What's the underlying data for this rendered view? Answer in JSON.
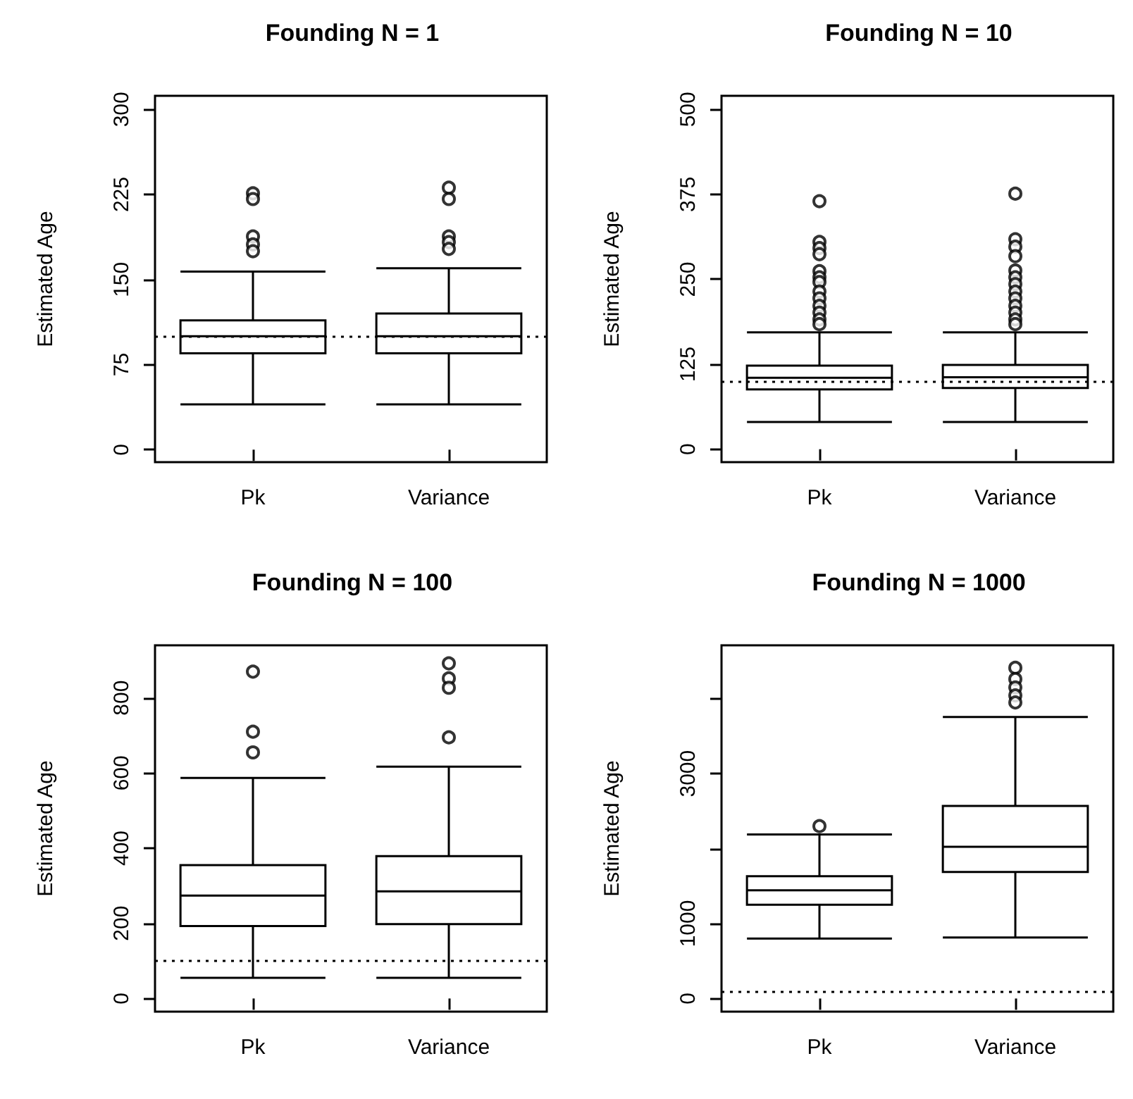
{
  "chart_data": [
    {
      "type": "box",
      "title": "Founding N = 1",
      "ylabel": "Estimated Age",
      "categories": [
        "Pk",
        "Variance"
      ],
      "boxes": [
        {
          "low": 40,
          "q1": 85,
          "median": 100,
          "q3": 114,
          "high": 157,
          "outliers": [
            226,
            221,
            188,
            181,
            175
          ]
        },
        {
          "low": 40,
          "q1": 85,
          "median": 100,
          "q3": 120,
          "high": 160,
          "outliers": [
            231,
            221,
            188,
            183,
            177
          ]
        }
      ],
      "ylim": [
        -11,
        312
      ],
      "yticks": [
        0,
        75,
        150,
        225,
        300
      ],
      "ref_lines": [
        {
          "axis": "y",
          "value": 100,
          "line_style": "dotted"
        }
      ]
    },
    {
      "type": "box",
      "title": "Founding N = 10",
      "ylabel": "Estimated Age",
      "categories": [
        "Pk",
        "Variance"
      ],
      "boxes": [
        {
          "low": 40,
          "q1": 88,
          "median": 105,
          "q3": 123,
          "high": 172,
          "outliers": [
            365,
            305,
            296,
            287,
            262,
            253,
            246,
            232,
            222,
            211,
            201,
            191,
            184
          ]
        },
        {
          "low": 40,
          "q1": 90,
          "median": 106,
          "q3": 124,
          "high": 172,
          "outliers": [
            376,
            309,
            298,
            284,
            263,
            253,
            243,
            232,
            222,
            211,
            201,
            191,
            184
          ]
        }
      ],
      "ylim": [
        -19,
        520
      ],
      "yticks": [
        0,
        125,
        250,
        375,
        500
      ],
      "ref_lines": [
        {
          "axis": "y",
          "value": 100,
          "line_style": "dotted"
        }
      ]
    },
    {
      "type": "box",
      "title": "Founding N = 100",
      "ylabel": "Estimated Age",
      "categories": [
        "Pk",
        "Variance"
      ],
      "boxes": [
        {
          "low": 55,
          "q1": 193,
          "median": 274,
          "q3": 355,
          "high": 587,
          "outliers": [
            870,
            710,
            655
          ]
        },
        {
          "low": 55,
          "q1": 198,
          "median": 285,
          "q3": 379,
          "high": 617,
          "outliers": [
            892,
            852,
            827,
            695
          ]
        }
      ],
      "ylim": [
        -35,
        940
      ],
      "yticks": [
        0,
        200,
        400,
        600,
        800
      ],
      "ref_lines": [
        {
          "axis": "y",
          "value": 100,
          "line_style": "dotted"
        }
      ]
    },
    {
      "type": "box",
      "title": "Founding N = 1000",
      "ylabel": "Estimated Age",
      "categories": [
        "Pk",
        "Variance"
      ],
      "boxes": [
        {
          "low": 800,
          "q1": 1250,
          "median": 1444,
          "q3": 1631,
          "high": 2188,
          "outliers": [
            2300
          ]
        },
        {
          "low": 813,
          "q1": 1688,
          "median": 2025,
          "q3": 2569,
          "high": 3756,
          "outliers": [
            4412,
            4262,
            4150,
            4044,
            3950
          ]
        }
      ],
      "ylim": [
        -175,
        4712
      ],
      "yticks": [
        0,
        1000,
        {
          "value": 2000,
          "label": null
        },
        3000,
        {
          "value": 4000,
          "label": null
        }
      ],
      "ref_lines": [
        {
          "axis": "y",
          "value": 100,
          "line_style": "dotted"
        }
      ]
    }
  ]
}
